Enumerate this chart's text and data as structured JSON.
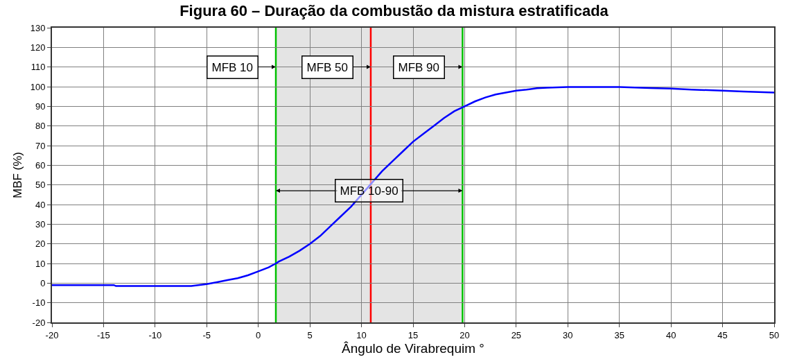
{
  "chart_data": {
    "type": "line",
    "title": "Figura 60 – Duração da combustão da mistura estratificada",
    "xlabel": "Ângulo de Virabrequim °",
    "ylabel": "MBF (%)",
    "x": [
      -20,
      -14,
      -13.8,
      -10,
      -6.5,
      -5,
      -4,
      -3,
      -2,
      -1,
      0,
      1,
      1.7,
      2,
      3,
      4,
      5,
      6,
      7,
      8,
      9,
      10,
      11,
      12,
      13,
      14,
      15,
      16,
      17,
      18,
      19,
      20,
      21,
      22,
      23,
      24,
      25,
      26,
      27,
      28,
      30,
      35,
      38,
      40,
      42,
      45,
      47,
      50
    ],
    "series": [
      {
        "color": "#0000ff",
        "values": [
          -1,
          -1,
          -1.5,
          -1.5,
          -1.5,
          -0.5,
          0.5,
          1.5,
          2.5,
          4,
          6,
          8,
          10,
          11,
          13.5,
          16.5,
          20,
          24,
          29,
          34,
          39,
          45,
          51,
          57,
          62,
          67,
          72,
          76,
          80,
          84,
          87.5,
          90,
          92.5,
          94.5,
          96,
          97,
          98,
          98.5,
          99.2,
          99.5,
          99.8,
          99.8,
          99.3,
          99,
          98.5,
          98,
          97.5,
          97
        ]
      }
    ],
    "xlim": [
      -20,
      50
    ],
    "xticks": [
      -20,
      -15,
      -10,
      -5,
      0,
      5,
      10,
      15,
      20,
      25,
      30,
      35,
      40,
      45,
      50
    ],
    "ylim": [
      -20,
      130
    ],
    "yticks": [
      -20,
      -10,
      0,
      10,
      20,
      30,
      40,
      50,
      60,
      70,
      80,
      90,
      100,
      110,
      120,
      130
    ],
    "ref_lines": [
      {
        "axis": "x",
        "value": 1.7,
        "label": "MFB 10",
        "color": "#00c000"
      },
      {
        "axis": "x",
        "value": 10.9,
        "label": "MFB 50",
        "color": "#ff0000"
      },
      {
        "axis": "x",
        "value": 19.8,
        "label": "MFB 90",
        "color": "#00c000"
      }
    ],
    "bands": [
      {
        "axis": "x",
        "from": 1.7,
        "to": 19.8,
        "label": "MFB 10-90",
        "color": "#e4e4e4"
      }
    ],
    "grid": true,
    "line_style": "solid",
    "marker": "none"
  }
}
